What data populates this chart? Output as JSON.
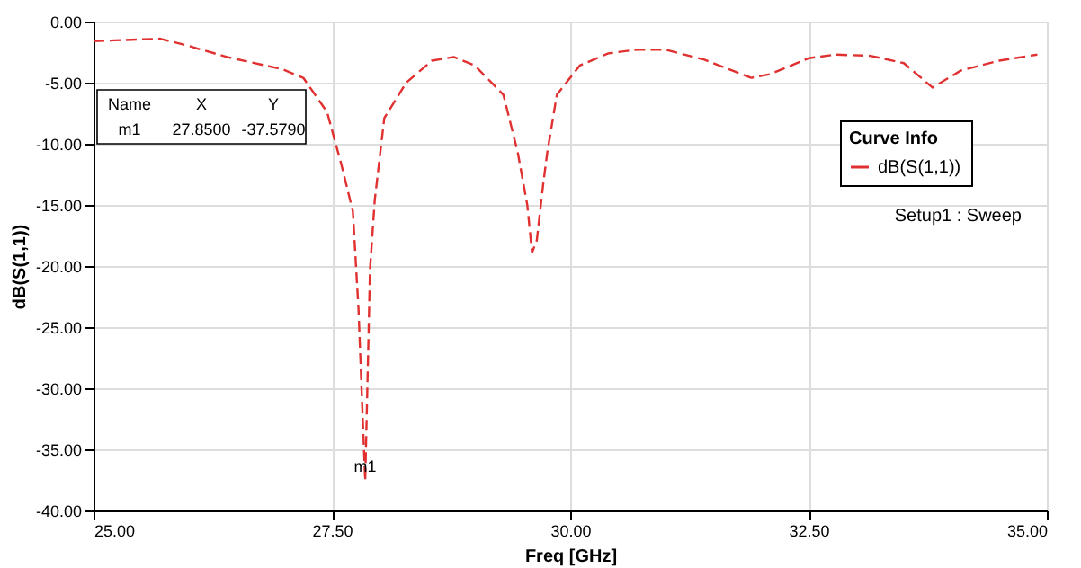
{
  "chart_data": {
    "type": "line",
    "xlabel": "Freq [GHz]",
    "ylabel": "dB(S(1,1))",
    "legend_title": "Curve Info",
    "xlim": [
      25,
      35
    ],
    "ylim": [
      -40,
      0
    ],
    "xticks": [
      {
        "value": 25,
        "label": "25.00"
      },
      {
        "value": 27.5,
        "label": "27.50"
      },
      {
        "value": 30,
        "label": "30.00"
      },
      {
        "value": 32.5,
        "label": "32.50"
      },
      {
        "value": 35,
        "label": "35.00"
      }
    ],
    "yticks": [
      {
        "value": -40,
        "label": "-40.00"
      },
      {
        "value": -35,
        "label": "-35.00"
      },
      {
        "value": -30,
        "label": "-30.00"
      },
      {
        "value": -25,
        "label": "-25.00"
      },
      {
        "value": -20,
        "label": "-20.00"
      },
      {
        "value": -15,
        "label": "-15.00"
      },
      {
        "value": -10,
        "label": "-10.00"
      },
      {
        "value": -5,
        "label": "-5.00"
      },
      {
        "value": 0,
        "label": "0.00"
      }
    ],
    "grid": true,
    "legend": "top right",
    "line_style": "dashed",
    "series": [
      {
        "name": "dB(S(1,1))",
        "color": "#e03030",
        "x": [
          25.0,
          25.7,
          26.0,
          26.4,
          26.98,
          27.2,
          27.45,
          27.6,
          27.72,
          27.78,
          27.82,
          27.85,
          27.88,
          27.9,
          27.95,
          28.05,
          28.28,
          28.55,
          28.78,
          29.0,
          29.3,
          29.45,
          29.55,
          29.6,
          29.65,
          29.72,
          29.76,
          29.86,
          30.0,
          30.1,
          30.4,
          30.7,
          31.0,
          31.4,
          31.9,
          32.1,
          32.5,
          32.78,
          33.15,
          33.5,
          33.8,
          34.1,
          34.5,
          34.9
        ],
        "values": [
          -1.6,
          -1.4,
          -2.0,
          -2.9,
          -3.9,
          -4.6,
          -7.4,
          -11.7,
          -15.5,
          -23.6,
          -31.7,
          -37.579,
          -27.4,
          -20.3,
          -14.6,
          -7.9,
          -5.0,
          -3.2,
          -2.9,
          -3.6,
          -6.0,
          -10.7,
          -15.0,
          -18.9,
          -17.9,
          -13.1,
          -10.7,
          -6.0,
          -4.6,
          -3.6,
          -2.6,
          -2.3,
          -2.3,
          -3.1,
          -4.6,
          -4.3,
          -3.0,
          -2.7,
          -2.8,
          -3.4,
          -5.4,
          -4.0,
          -3.2,
          -2.7
        ]
      }
    ],
    "annotations": [
      {
        "text": "m1",
        "x": 27.85,
        "y": -37.579
      },
      "Name",
      "X",
      "Y",
      "m1",
      "27.8500",
      "-37.5790",
      "Setup1 : Sweep"
    ]
  }
}
